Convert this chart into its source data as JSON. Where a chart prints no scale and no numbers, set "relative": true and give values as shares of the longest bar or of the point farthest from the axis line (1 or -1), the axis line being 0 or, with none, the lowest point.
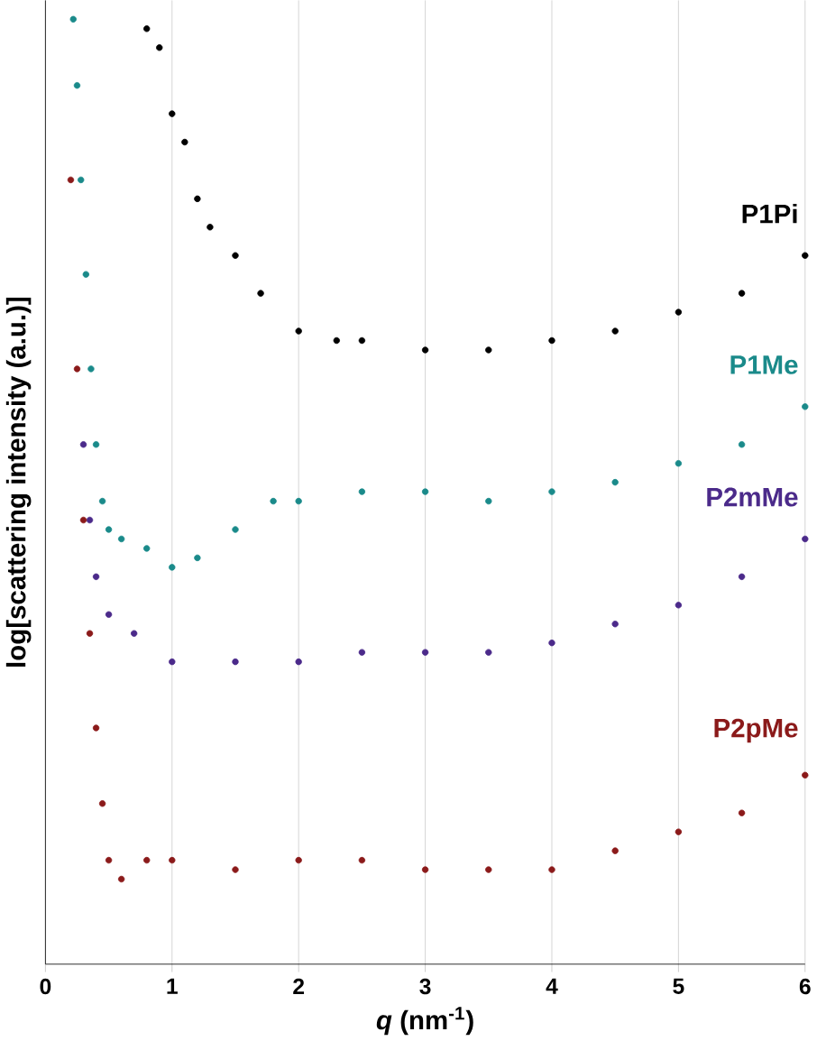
{
  "chart_data": {
    "type": "scatter",
    "relative": true,
    "xlabel": "*q* (nm$^{-1}$)",
    "ylabel": "log[scattering intensity (a.u.)]",
    "xlim": [
      0,
      6
    ],
    "xticks": [
      0,
      1,
      2,
      3,
      4,
      5,
      6
    ],
    "grid": "x",
    "tick_labels": "x",
    "marker": "circle",
    "series": [
      {
        "name": "P1Pi",
        "color": "#000000",
        "x": [
          0.8,
          0.9,
          1.0,
          1.1,
          1.2,
          1.3,
          1.5,
          1.7,
          2.0,
          2.3,
          2.5,
          3.0,
          3.5,
          4.0,
          4.5,
          5.0,
          5.5,
          6.0
        ],
        "values": [
          0.99,
          0.97,
          0.9,
          0.87,
          0.81,
          0.78,
          0.75,
          0.71,
          0.67,
          0.66,
          0.66,
          0.65,
          0.65,
          0.66,
          0.67,
          0.69,
          0.71,
          0.75
        ]
      },
      {
        "name": "P1Me",
        "color": "#1a8a8a",
        "x": [
          0.22,
          0.25,
          0.28,
          0.32,
          0.36,
          0.4,
          0.45,
          0.5,
          0.6,
          0.8,
          1.0,
          1.2,
          1.5,
          1.8,
          2.0,
          2.5,
          3.0,
          3.5,
          4.0,
          4.5,
          5.0,
          5.5,
          6.0
        ],
        "values": [
          1.0,
          0.93,
          0.83,
          0.73,
          0.63,
          0.55,
          0.49,
          0.46,
          0.45,
          0.44,
          0.42,
          0.43,
          0.46,
          0.49,
          0.49,
          0.5,
          0.5,
          0.49,
          0.5,
          0.51,
          0.53,
          0.55,
          0.59
        ]
      },
      {
        "name": "P2mMe",
        "color": "#4b2a8a",
        "x": [
          0.3,
          0.35,
          0.4,
          0.5,
          0.7,
          1.0,
          1.5,
          2.0,
          2.5,
          3.0,
          3.5,
          4.0,
          4.5,
          5.0,
          5.5,
          6.0
        ],
        "values": [
          0.55,
          0.47,
          0.41,
          0.37,
          0.35,
          0.32,
          0.32,
          0.32,
          0.33,
          0.33,
          0.33,
          0.34,
          0.36,
          0.38,
          0.41,
          0.45
        ]
      },
      {
        "name": "P2pMe",
        "color": "#8b1a1a",
        "x": [
          0.2,
          0.25,
          0.3,
          0.35,
          0.4,
          0.45,
          0.5,
          0.6,
          0.8,
          1.0,
          1.5,
          2.0,
          2.5,
          3.0,
          3.5,
          4.0,
          4.5,
          5.0,
          5.5,
          6.0
        ],
        "values": [
          0.83,
          0.63,
          0.47,
          0.35,
          0.25,
          0.17,
          0.11,
          0.09,
          0.11,
          0.11,
          0.1,
          0.11,
          0.11,
          0.1,
          0.1,
          0.1,
          0.12,
          0.14,
          0.16,
          0.2
        ]
      }
    ]
  }
}
